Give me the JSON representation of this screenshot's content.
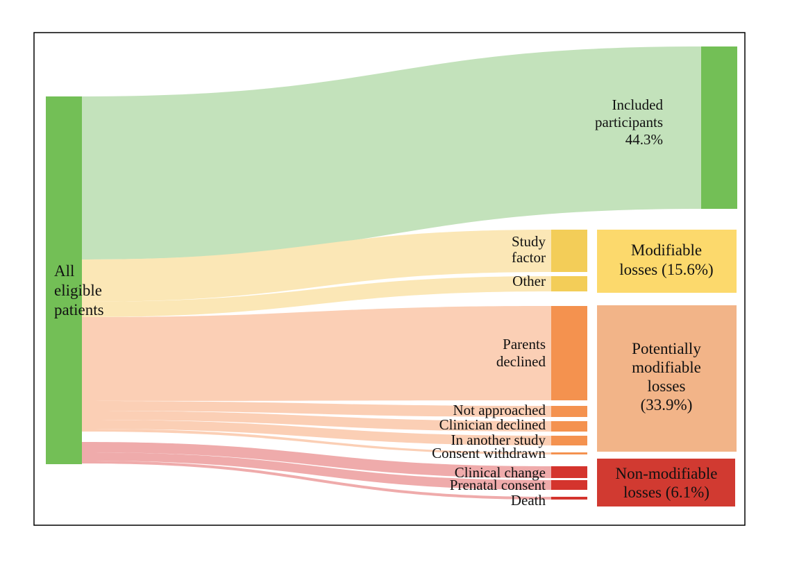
{
  "chart_data": {
    "type": "sankey",
    "source": {
      "label_lines": [
        "All",
        "eligible",
        "patients"
      ],
      "color": "#73bf56"
    },
    "included": {
      "label_lines": [
        "Included",
        "participants",
        "44.3%"
      ],
      "value": 44.3,
      "node_color": "#73bf56",
      "link_color": "#c3e2bb"
    },
    "groups": [
      {
        "id": "modifiable",
        "label_lines": [
          "Modifiable",
          "losses (15.6%)"
        ],
        "value": 15.6,
        "box_color": "#fcd96c",
        "node_color": "#f3cd58",
        "link_color": "#fbe7b6",
        "items": [
          {
            "label_lines": [
              "Study",
              "factor"
            ]
          },
          {
            "label_lines": [
              "Other"
            ]
          }
        ]
      },
      {
        "id": "potentially-modifiable",
        "label_lines": [
          "Potentially",
          "modifiable",
          "losses",
          "(33.9%)"
        ],
        "value": 33.9,
        "box_color": "#f2b488",
        "node_color": "#f4924f",
        "link_color": "#fbcfb5",
        "items": [
          {
            "label_lines": [
              "Parents",
              "declined"
            ]
          },
          {
            "label_lines": [
              "Not approached"
            ]
          },
          {
            "label_lines": [
              "Clinician declined"
            ]
          },
          {
            "label_lines": [
              "In another study"
            ]
          },
          {
            "label_lines": [
              "Consent withdrawn"
            ]
          }
        ]
      },
      {
        "id": "non-modifiable",
        "label_lines": [
          "Non-modifiable",
          "losses (6.1%)"
        ],
        "value": 6.1,
        "box_color": "#d13a31",
        "node_color": "#d4342d",
        "link_color": "#efabab",
        "items": [
          {
            "label_lines": [
              "Clinical change"
            ]
          },
          {
            "label_lines": [
              "Prenatal consent"
            ]
          },
          {
            "label_lines": [
              "Death"
            ]
          }
        ]
      }
    ]
  }
}
